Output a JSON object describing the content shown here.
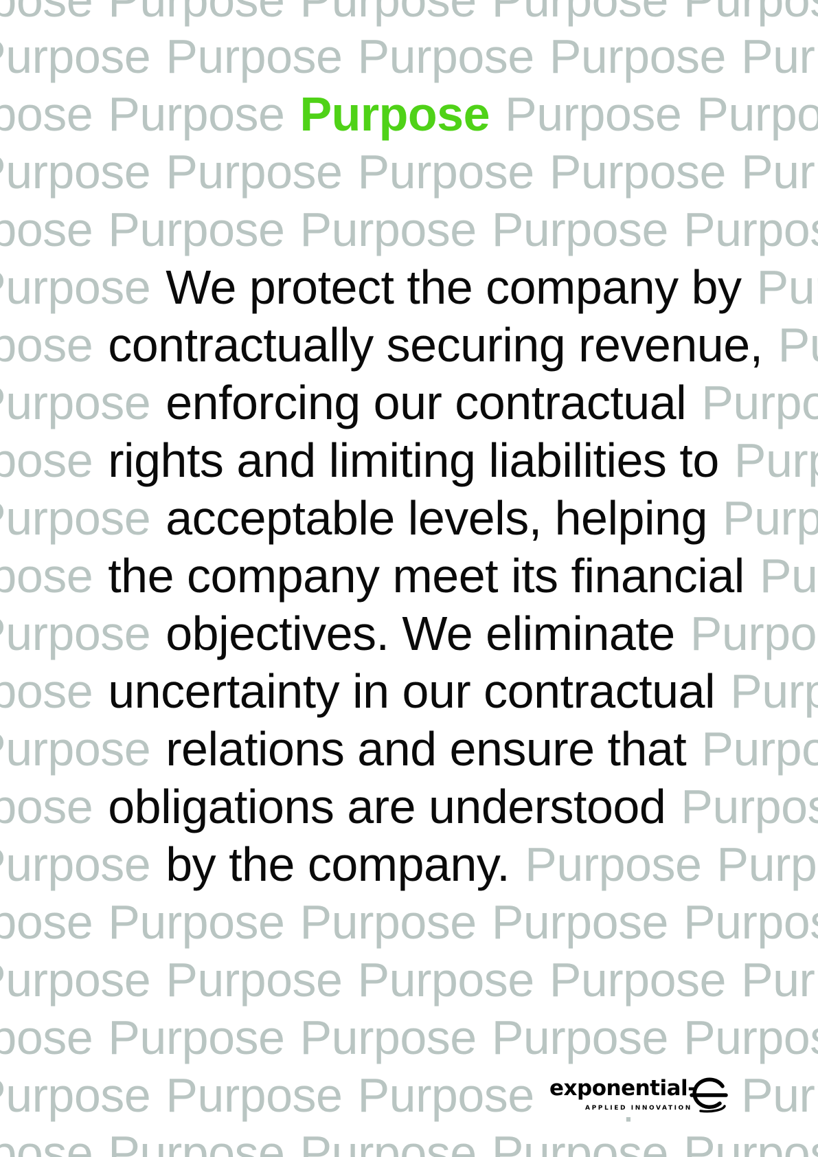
{
  "background_word": "Purpose",
  "highlight_word": "Purpose",
  "body_lines": [
    "We protect the company by",
    "contractually securing revenue,",
    "enforcing our contractual",
    "rights and limiting liabilities to",
    "acceptable levels, helping",
    "the company meet its financial",
    "objectives. We eliminate",
    "uncertainty in our contractual",
    "relations and ensure that",
    "obligations are understood",
    "by the company."
  ],
  "logo": {
    "wordmark": "exponential-",
    "tagline": "APPLIED INNOVATION",
    "icon": "exponential-e-logo-icon"
  },
  "colors": {
    "background": "#ffffff",
    "pattern_word": "#b9c5c2",
    "highlight": "#4fd217",
    "body_text": "#0a0a0a"
  }
}
